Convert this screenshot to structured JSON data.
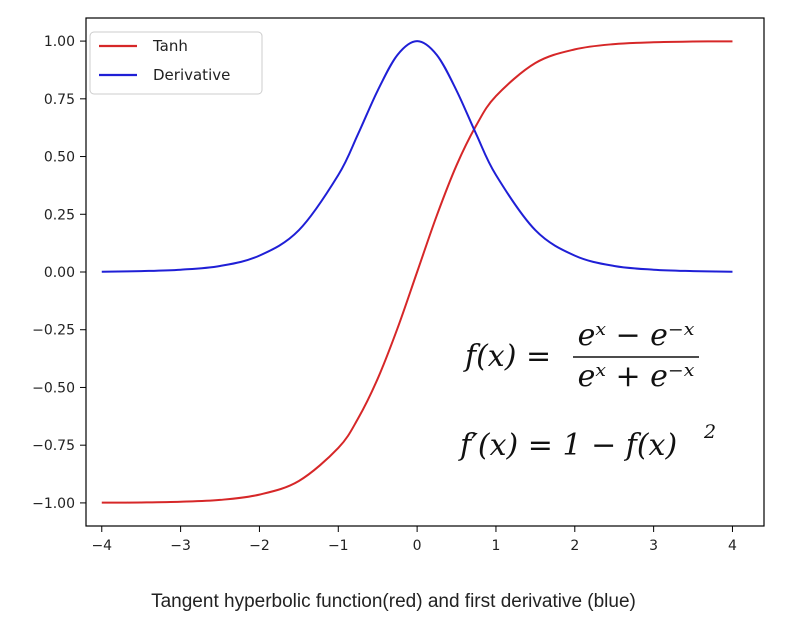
{
  "caption": "Tangent hyperbolic function(red) and first derivative (blue)",
  "chart_data": {
    "type": "line",
    "x_ticks": [
      -4,
      -3,
      -2,
      -1,
      0,
      1,
      2,
      3,
      4
    ],
    "x_tick_labels": [
      "−4",
      "−3",
      "−2",
      "−1",
      "0",
      "1",
      "2",
      "3",
      "4"
    ],
    "y_ticks": [
      -1.0,
      -0.75,
      -0.5,
      -0.25,
      0.0,
      0.25,
      0.5,
      0.75,
      1.0
    ],
    "y_tick_labels": [
      "−1.00",
      "−0.75",
      "−0.50",
      "−0.25",
      "0.00",
      "0.25",
      "0.50",
      "0.75",
      "1.00"
    ],
    "xlim": [
      -4.2,
      4.4
    ],
    "ylim": [
      -1.1,
      1.1
    ],
    "grid": false,
    "legend_position": "top-left",
    "x": [
      -4,
      -3.5,
      -3,
      -2.5,
      -2,
      -1.5,
      -1,
      -0.75,
      -0.5,
      -0.25,
      0,
      0.25,
      0.5,
      0.75,
      1,
      1.5,
      2,
      2.5,
      3,
      3.5,
      4
    ],
    "series": [
      {
        "name": "Tanh",
        "color": "#d62728",
        "values": [
          -0.999,
          -0.998,
          -0.995,
          -0.987,
          -0.964,
          -0.905,
          -0.762,
          -0.635,
          -0.462,
          -0.245,
          0.0,
          0.245,
          0.462,
          0.635,
          0.762,
          0.905,
          0.964,
          0.987,
          0.995,
          0.998,
          0.999
        ]
      },
      {
        "name": "Derivative",
        "color": "#1f1fd6",
        "values": [
          0.001,
          0.004,
          0.01,
          0.026,
          0.071,
          0.181,
          0.42,
          0.597,
          0.786,
          0.94,
          1.0,
          0.94,
          0.786,
          0.597,
          0.42,
          0.181,
          0.071,
          0.026,
          0.01,
          0.004,
          0.001
        ]
      }
    ],
    "annotations": {
      "formula1_lhs": "f(x) =",
      "formula1_num": "eˣ − e⁻ˣ",
      "formula1_den": "eˣ + e⁻ˣ",
      "formula2_main": "f′(x) = 1 − f(x)",
      "formula2_exp": "2"
    }
  }
}
